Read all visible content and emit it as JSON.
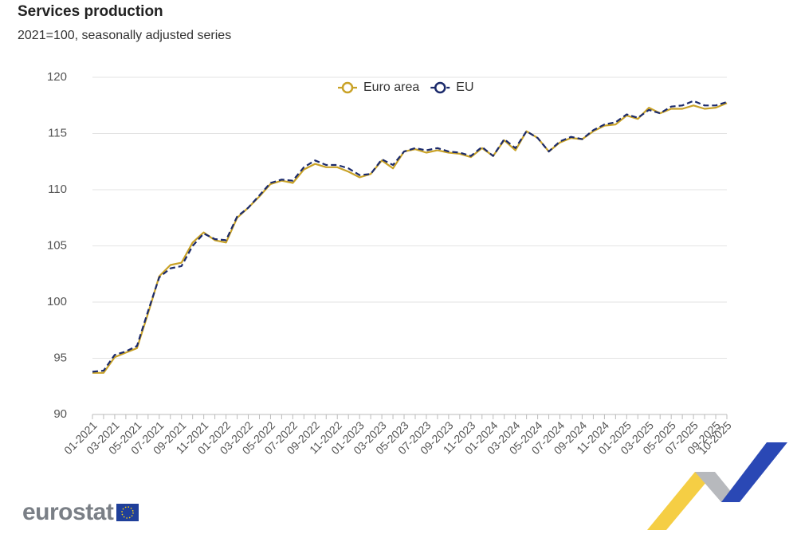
{
  "chart_data": {
    "type": "line",
    "title": "Services production",
    "subtitle": "2021=100, seasonally adjusted series",
    "categories": [
      "01-2021",
      null,
      "03-2021",
      null,
      "05-2021",
      null,
      "07-2021",
      null,
      "09-2021",
      null,
      "11-2021",
      null,
      "01-2022",
      null,
      "03-2022",
      null,
      "05-2022",
      null,
      "07-2022",
      null,
      "09-2022",
      null,
      "11-2022",
      null,
      "01-2023",
      null,
      "03-2023",
      null,
      "05-2023",
      null,
      "07-2023",
      null,
      "09-2023",
      null,
      "11-2023",
      null,
      "01-2024",
      null,
      "03-2024",
      null,
      "05-2024",
      null,
      "07-2024",
      null,
      "09-2024",
      null,
      "11-2024",
      null,
      "01-2025",
      null,
      "03-2025",
      null,
      "05-2025",
      null,
      "07-2025",
      null,
      "09-2025",
      "10-2025"
    ],
    "series": [
      {
        "name": "Euro area",
        "color": "#c9a227",
        "dashed": false,
        "values": [
          93.7,
          93.7,
          95.1,
          95.5,
          95.9,
          99.0,
          102.3,
          103.3,
          103.5,
          105.3,
          106.2,
          105.5,
          105.3,
          107.5,
          108.4,
          109.4,
          110.5,
          110.8,
          110.6,
          111.8,
          112.3,
          112.0,
          112.0,
          111.6,
          111.1,
          111.4,
          112.6,
          111.9,
          113.4,
          113.6,
          113.3,
          113.5,
          113.3,
          113.2,
          112.9,
          113.7,
          113.0,
          114.4,
          113.5,
          115.2,
          114.6,
          113.4,
          114.2,
          114.6,
          114.5,
          115.2,
          115.7,
          115.8,
          116.6,
          116.3,
          117.3,
          116.8,
          117.2,
          117.2,
          117.5,
          117.2,
          117.3,
          117.7
        ]
      },
      {
        "name": "EU",
        "color": "#1b2a6b",
        "dashed": true,
        "values": [
          93.8,
          93.9,
          95.3,
          95.6,
          96.1,
          99.2,
          102.2,
          103.0,
          103.2,
          105.0,
          106.1,
          105.6,
          105.5,
          107.6,
          108.4,
          109.5,
          110.6,
          110.9,
          110.8,
          112.0,
          112.6,
          112.2,
          112.2,
          111.9,
          111.3,
          111.4,
          112.7,
          112.2,
          113.4,
          113.7,
          113.5,
          113.7,
          113.4,
          113.3,
          113.0,
          113.8,
          113.0,
          114.5,
          113.7,
          115.2,
          114.6,
          113.4,
          114.3,
          114.7,
          114.5,
          115.3,
          115.8,
          116.0,
          116.7,
          116.4,
          117.1,
          116.8,
          117.4,
          117.5,
          117.9,
          117.5,
          117.5,
          117.8
        ]
      }
    ],
    "ylim": [
      90,
      120
    ],
    "yticks": [
      90,
      95,
      100,
      105,
      110,
      115,
      120
    ],
    "grid": true,
    "legend": "top"
  },
  "logo_text": "eurostat"
}
